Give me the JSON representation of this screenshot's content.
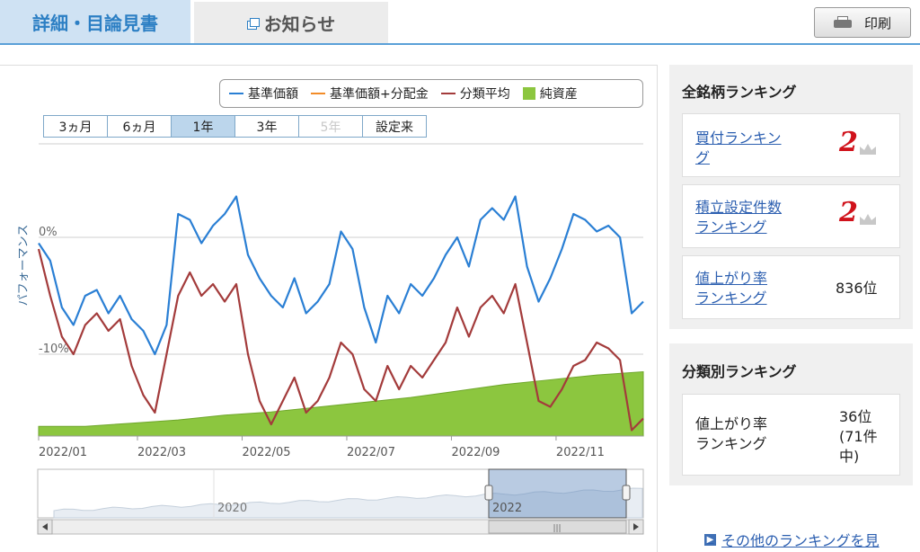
{
  "tabs": {
    "active_label": "詳細・目論見書",
    "news_label": "お知らせ",
    "print_label": "印刷"
  },
  "legend": [
    {
      "label": "基準価額",
      "color": "#2a7fd4",
      "type": "line"
    },
    {
      "label": "基準価額+分配金",
      "color": "#f28c28",
      "type": "line"
    },
    {
      "label": "分類平均",
      "color": "#a33b3b",
      "type": "line"
    },
    {
      "label": "純資産",
      "color": "#8cc63f",
      "type": "area"
    }
  ],
  "periods": [
    {
      "label": "3ヵ月",
      "state": "normal"
    },
    {
      "label": "6ヵ月",
      "state": "normal"
    },
    {
      "label": "1年",
      "state": "active"
    },
    {
      "label": "3年",
      "state": "normal"
    },
    {
      "label": "5年",
      "state": "disabled"
    },
    {
      "label": "設定来",
      "state": "normal"
    }
  ],
  "chart_data": {
    "type": "line",
    "ylabel": "パフォーマンス",
    "y_ticks": [
      "0%",
      "-10%"
    ],
    "ylim": [
      -17,
      8
    ],
    "x_tick_labels": [
      "2022/01",
      "2022/03",
      "2022/05",
      "2022/07",
      "2022/09",
      "2022/11"
    ],
    "x_tick_positions": [
      0,
      8.5,
      17.5,
      26.5,
      35.5,
      44.5
    ],
    "x_range": [
      0,
      52
    ],
    "series": [
      {
        "name": "基準価額",
        "color": "#2a7fd4",
        "x": [
          0,
          1,
          2,
          3,
          4,
          5,
          6,
          7,
          8,
          9,
          10,
          11,
          12,
          13,
          14,
          15,
          16,
          17,
          18,
          19,
          20,
          21,
          22,
          23,
          24,
          25,
          26,
          27,
          28,
          29,
          30,
          31,
          32,
          33,
          34,
          35,
          36,
          37,
          38,
          39,
          40,
          41,
          42,
          43,
          44,
          45,
          46,
          47,
          48,
          49,
          50,
          51,
          52
        ],
        "values": [
          -0.5,
          -2,
          -6,
          -7.5,
          -5,
          -4.5,
          -6.5,
          -5,
          -7,
          -8,
          -10,
          -7.5,
          2,
          1.5,
          -0.5,
          1,
          2,
          3.5,
          -1.5,
          -3.5,
          -5,
          -6,
          -3.5,
          -6.5,
          -5.5,
          -4,
          0.5,
          -1,
          -6,
          -9,
          -5,
          -6.5,
          -4,
          -5,
          -3.5,
          -1.5,
          0,
          -2.5,
          1.5,
          2.5,
          1.5,
          3.5,
          -2.5,
          -5.5,
          -3.5,
          -1,
          2,
          1.5,
          0.5,
          1,
          0,
          -6.5,
          -5.5
        ]
      },
      {
        "name": "分類平均",
        "color": "#a33b3b",
        "x": [
          0,
          1,
          2,
          3,
          4,
          5,
          6,
          7,
          8,
          9,
          10,
          11,
          12,
          13,
          14,
          15,
          16,
          17,
          18,
          19,
          20,
          21,
          22,
          23,
          24,
          25,
          26,
          27,
          28,
          29,
          30,
          31,
          32,
          33,
          34,
          35,
          36,
          37,
          38,
          39,
          40,
          41,
          42,
          43,
          44,
          45,
          46,
          47,
          48,
          49,
          50,
          51,
          52
        ],
        "values": [
          -1,
          -5,
          -8.5,
          -10,
          -7.5,
          -6.5,
          -8,
          -7,
          -11,
          -13.5,
          -15,
          -10,
          -5,
          -3,
          -5,
          -4,
          -5.5,
          -4,
          -10,
          -14,
          -16,
          -14,
          -12,
          -15,
          -14,
          -12,
          -9,
          -10,
          -13,
          -14,
          -11,
          -13,
          -11,
          -12,
          -10.5,
          -9,
          -6,
          -8.5,
          -6,
          -5,
          -6.5,
          -4,
          -9,
          -14,
          -14.5,
          -13,
          -11,
          -10.5,
          -9,
          -9.5,
          -10.5,
          -16.5,
          -15.5
        ]
      }
    ],
    "net_assets": {
      "name": "純資産",
      "color": "#8cc63f",
      "x": [
        0,
        4,
        8,
        12,
        16,
        20,
        24,
        28,
        32,
        36,
        40,
        44,
        48,
        52
      ],
      "values": [
        0.6,
        0.6,
        0.8,
        1,
        1.3,
        1.5,
        1.8,
        2.1,
        2.4,
        2.8,
        3.2,
        3.5,
        3.8,
        4.0
      ]
    },
    "navigator": {
      "labels": [
        "2020",
        "2022"
      ]
    }
  },
  "rankings": {
    "all_title": "全銘柄ランキング",
    "items": [
      {
        "label_lines": [
          "買付ランキン",
          "グ"
        ],
        "rank": "2"
      },
      {
        "label_lines": [
          "積立設定件数",
          "ランキング"
        ],
        "rank": "2"
      },
      {
        "label_lines": [
          "値上がり率",
          "ランキング"
        ],
        "rank": "836位"
      }
    ],
    "category_title": "分類別ランキング",
    "category_item": {
      "label_lines": [
        "値上がり率",
        "ランキング"
      ],
      "rank_lines": [
        "36位",
        "(71件",
        "中)"
      ]
    },
    "more_link": "その他のランキングを見"
  }
}
